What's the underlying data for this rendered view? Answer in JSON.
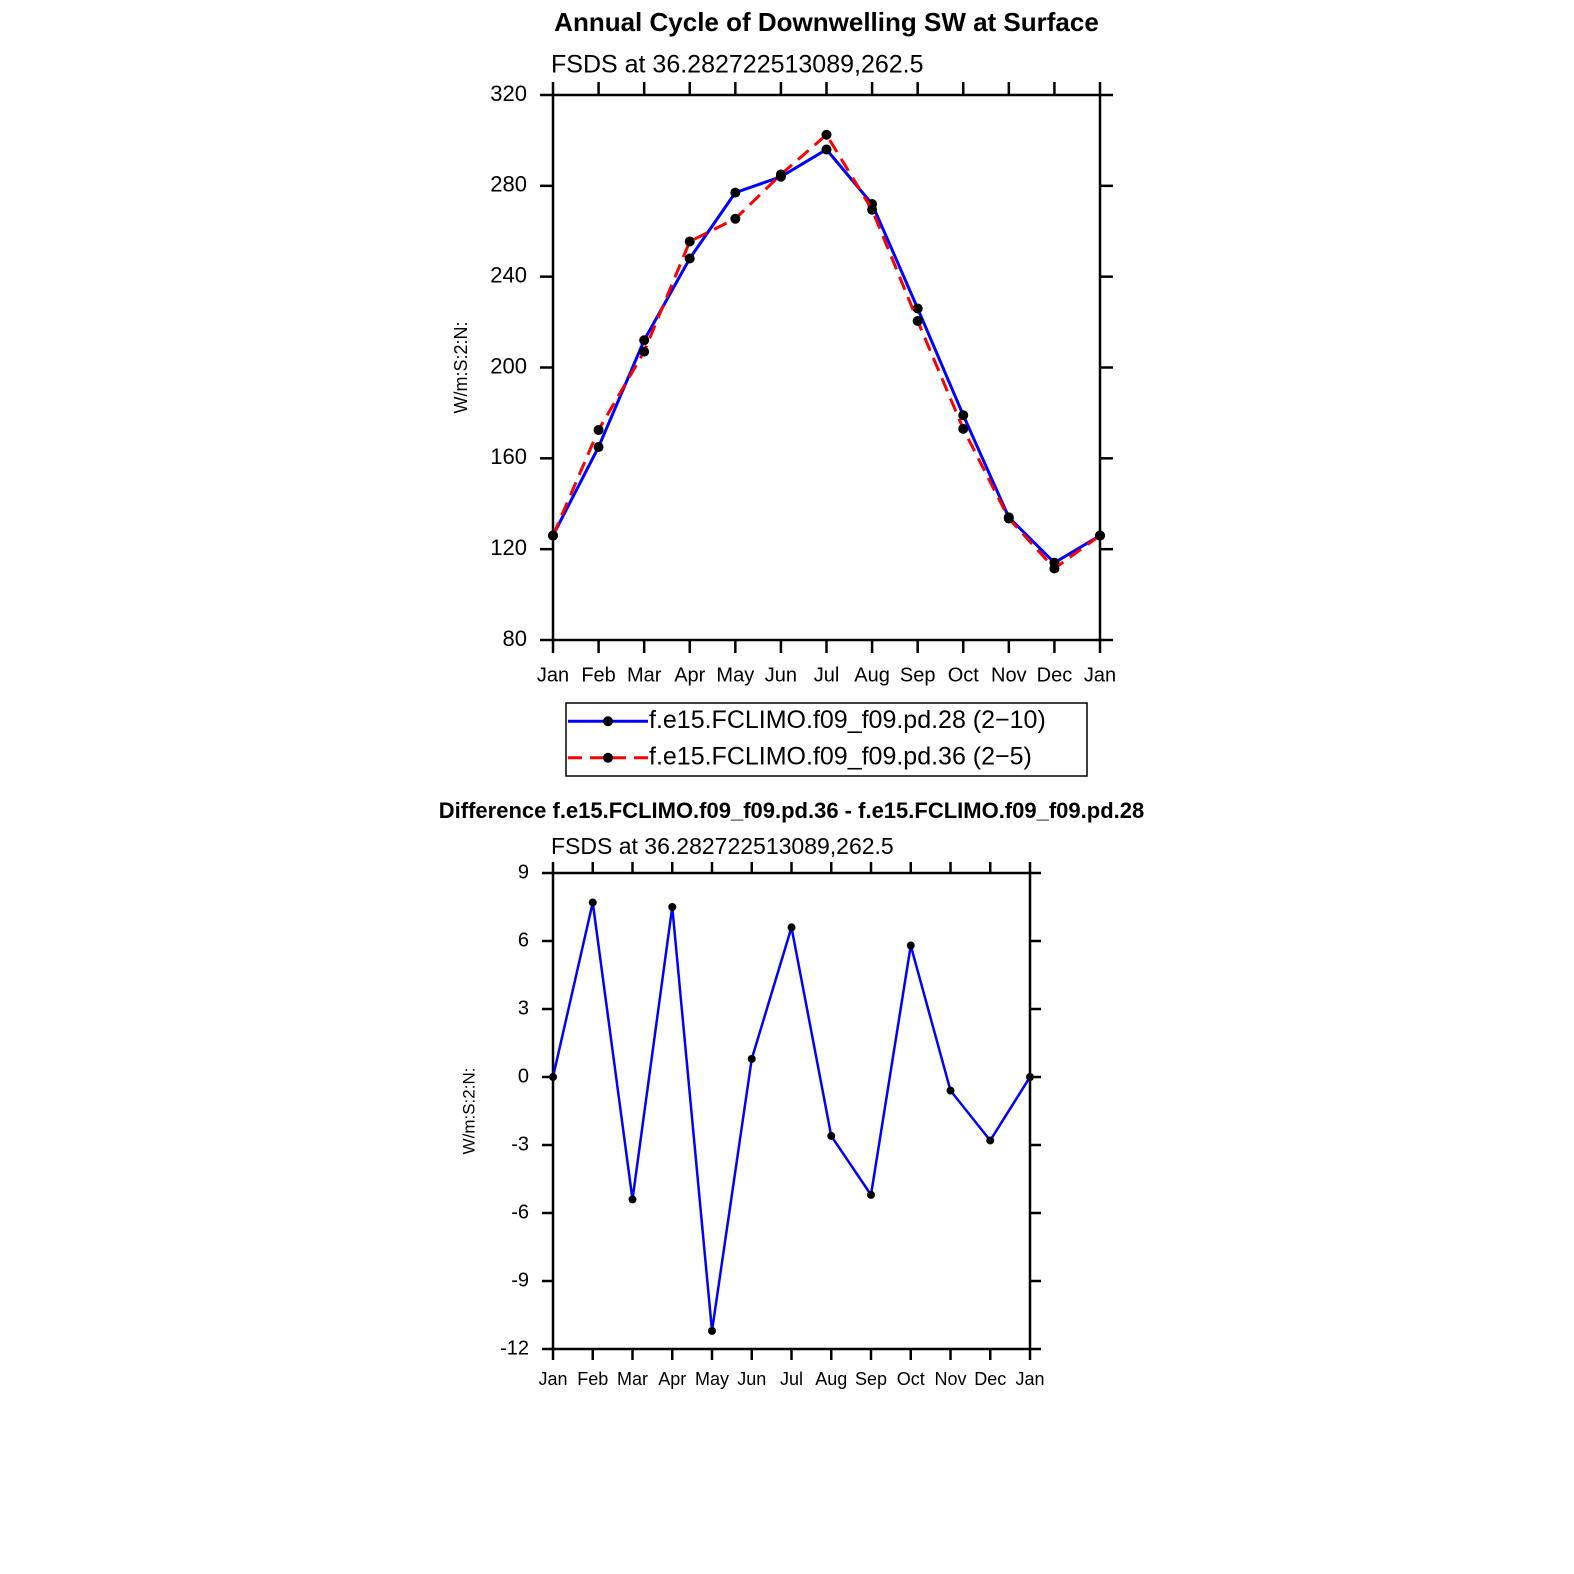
{
  "chart_data": [
    {
      "type": "line",
      "title": "Annual Cycle of Downwelling SW at Surface",
      "subtitle": "FSDS at 36.282722513089,262.5",
      "y_label": "W/m:S:2:N:",
      "categories": [
        "Jan",
        "Feb",
        "Mar",
        "Apr",
        "May",
        "Jun",
        "Jul",
        "Aug",
        "Sep",
        "Oct",
        "Nov",
        "Dec",
        "Jan"
      ],
      "series": [
        {
          "name": "f.e15.FCLIMO.f09_f09.pd.28 (2−10)",
          "color": "#0000ff",
          "style": "solid",
          "values": [
            126,
            165,
            212,
            248,
            277,
            284,
            296,
            272,
            226,
            179,
            134,
            114,
            126
          ]
        },
        {
          "name": "f.e15.FCLIMO.f09_f09.pd.36 (2−5)",
          "color": "#ff0000",
          "style": "dashed",
          "values": [
            126,
            172.5,
            207,
            255.5,
            265.5,
            285,
            302.5,
            269.5,
            220.5,
            173,
            133.5,
            111.5,
            126
          ]
        }
      ],
      "ylim": [
        80,
        320
      ],
      "yticks": [
        80,
        120,
        160,
        200,
        240,
        280,
        320
      ],
      "legend": "bottom"
    },
    {
      "type": "line",
      "title": "Difference f.e15.FCLIMO.f09_f09.pd.36 - f.e15.FCLIMO.f09_f09.pd.28",
      "subtitle": "FSDS at 36.282722513089,262.5",
      "y_label": "W/m:S:2:N:",
      "categories": [
        "Jan",
        "Feb",
        "Mar",
        "Apr",
        "May",
        "Jun",
        "Jul",
        "Aug",
        "Sep",
        "Oct",
        "Nov",
        "Dec",
        "Jan"
      ],
      "values": [
        0,
        7.7,
        -5.4,
        7.5,
        -11.2,
        0.8,
        6.6,
        -2.6,
        -5.2,
        5.8,
        -0.6,
        -2.8,
        0
      ],
      "color": "#0000ff",
      "ylim": [
        -12,
        9
      ],
      "yticks": [
        -12,
        -9,
        -6,
        -3,
        0,
        3,
        6,
        9
      ]
    }
  ]
}
